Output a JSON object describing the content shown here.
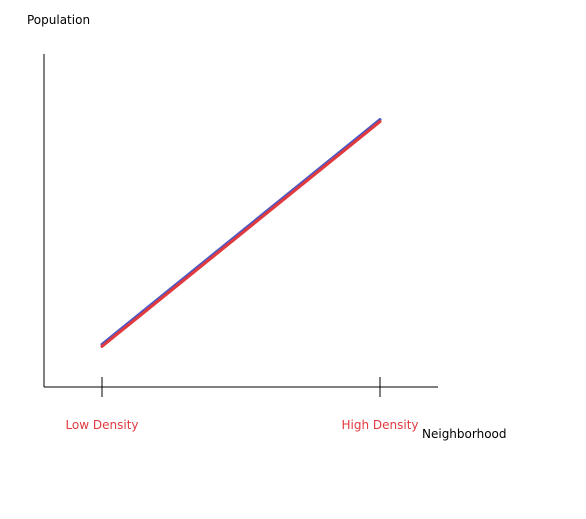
{
  "chart_data": {
    "type": "line",
    "title": "",
    "xlabel": "Neighborhood",
    "ylabel": "Population",
    "categories": [
      "Low Density",
      "High Density"
    ],
    "series": [
      {
        "values": [
          1,
          6.4
        ]
      }
    ],
    "ylim": [
      0,
      8
    ],
    "grid": false,
    "legend": "none",
    "colors": {
      "axis": "#000000",
      "axis_label": "#000000",
      "tick_label": "#e0393e",
      "line_outer": "#4b58c4",
      "line_inner": "#e0393e"
    }
  }
}
